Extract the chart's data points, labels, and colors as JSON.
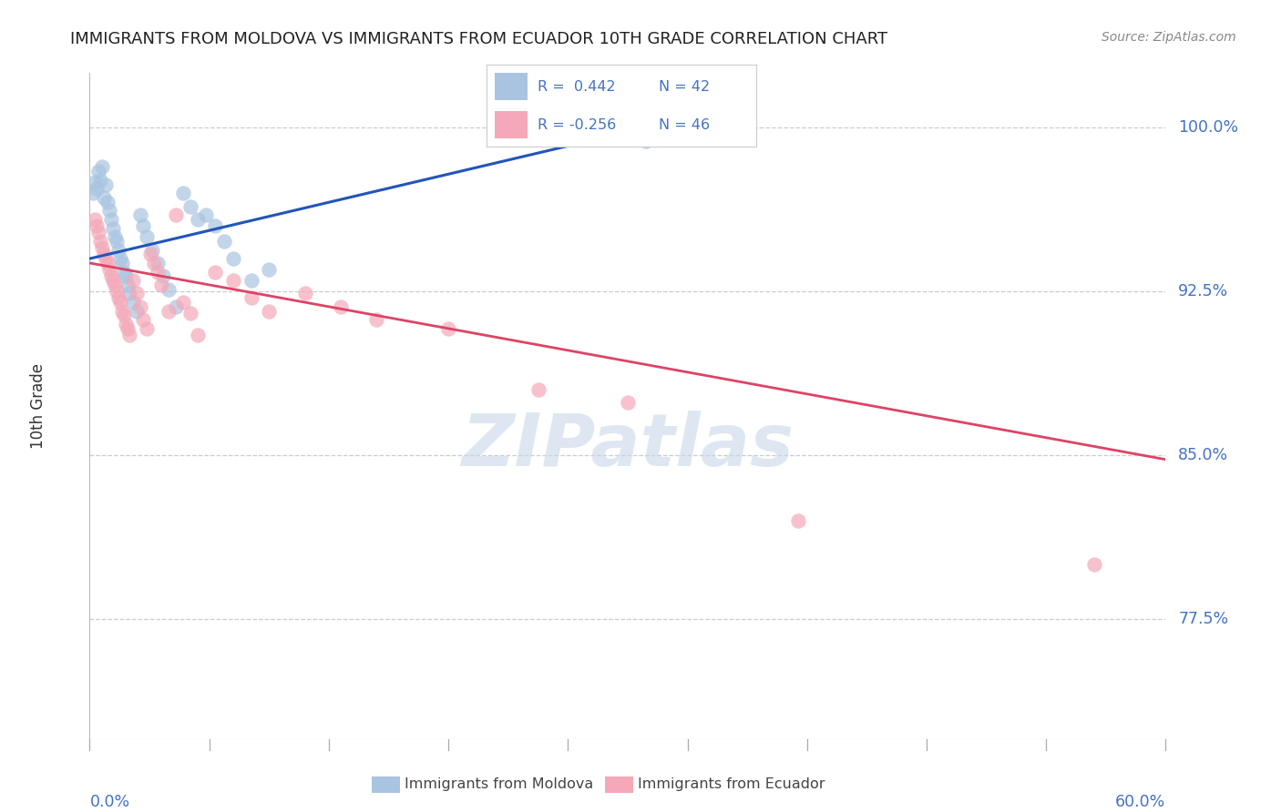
{
  "title": "IMMIGRANTS FROM MOLDOVA VS IMMIGRANTS FROM ECUADOR 10TH GRADE CORRELATION CHART",
  "source": "Source: ZipAtlas.com",
  "ylabel": "10th Grade",
  "R_moldova": "0.442",
  "N_moldova": "42",
  "R_ecuador": "-0.256",
  "N_ecuador": "46",
  "moldova_color": "#a8c4e0",
  "ecuador_color": "#f4a8b8",
  "moldova_line_color": "#2255bb",
  "ecuador_line_color": "#dd4466",
  "text_color_blue": "#4472c4",
  "grid_color": "#cccccc",
  "background_color": "#ffffff",
  "watermark_text": "ZIPatlas",
  "watermark_color": "#c8d8e8",
  "legend1_label": "Immigrants from Moldova",
  "legend2_label": "Immigrants from Ecuador",
  "xmin": 0.0,
  "xmax": 0.6,
  "ymin": 0.72,
  "ymax": 1.025,
  "ytick_vals": [
    1.0,
    0.925,
    0.85,
    0.775
  ],
  "ytick_labels": [
    "100.0%",
    "92.5%",
    "85.0%",
    "77.5%"
  ],
  "moldova_x": [
    0.002,
    0.003,
    0.004,
    0.005,
    0.006,
    0.007,
    0.008,
    0.009,
    0.01,
    0.011,
    0.012,
    0.013,
    0.014,
    0.015,
    0.016,
    0.017,
    0.018,
    0.019,
    0.02,
    0.021,
    0.022,
    0.024,
    0.026,
    0.028,
    0.03,
    0.032,
    0.035,
    0.038,
    0.041,
    0.044,
    0.048,
    0.052,
    0.056,
    0.06,
    0.065,
    0.07,
    0.075,
    0.08,
    0.09,
    0.1,
    0.28,
    0.31
  ],
  "moldova_y": [
    0.97,
    0.975,
    0.972,
    0.98,
    0.976,
    0.982,
    0.968,
    0.974,
    0.966,
    0.962,
    0.958,
    0.954,
    0.95,
    0.948,
    0.944,
    0.94,
    0.938,
    0.934,
    0.932,
    0.928,
    0.924,
    0.92,
    0.916,
    0.96,
    0.955,
    0.95,
    0.944,
    0.938,
    0.932,
    0.926,
    0.918,
    0.97,
    0.964,
    0.958,
    0.96,
    0.955,
    0.948,
    0.94,
    0.93,
    0.935,
    0.998,
    0.994
  ],
  "ecuador_x": [
    0.003,
    0.004,
    0.005,
    0.006,
    0.007,
    0.008,
    0.009,
    0.01,
    0.011,
    0.012,
    0.013,
    0.014,
    0.015,
    0.016,
    0.017,
    0.018,
    0.019,
    0.02,
    0.021,
    0.022,
    0.024,
    0.026,
    0.028,
    0.03,
    0.032,
    0.034,
    0.036,
    0.038,
    0.04,
    0.044,
    0.048,
    0.052,
    0.056,
    0.06,
    0.07,
    0.08,
    0.09,
    0.1,
    0.12,
    0.14,
    0.16,
    0.2,
    0.25,
    0.3,
    0.395,
    0.56
  ],
  "ecuador_y": [
    0.958,
    0.955,
    0.952,
    0.948,
    0.945,
    0.942,
    0.94,
    0.938,
    0.935,
    0.932,
    0.93,
    0.928,
    0.925,
    0.922,
    0.92,
    0.916,
    0.914,
    0.91,
    0.908,
    0.905,
    0.93,
    0.924,
    0.918,
    0.912,
    0.908,
    0.942,
    0.938,
    0.934,
    0.928,
    0.916,
    0.96,
    0.92,
    0.915,
    0.905,
    0.934,
    0.93,
    0.922,
    0.916,
    0.924,
    0.918,
    0.912,
    0.908,
    0.88,
    0.874,
    0.82,
    0.8
  ],
  "moldova_trend_x0": 0.0,
  "moldova_trend_y0": 0.94,
  "moldova_trend_x1": 0.31,
  "moldova_trend_y1": 1.0,
  "ecuador_trend_x0": 0.0,
  "ecuador_trend_y0": 0.938,
  "ecuador_trend_x1": 0.6,
  "ecuador_trend_y1": 0.848
}
